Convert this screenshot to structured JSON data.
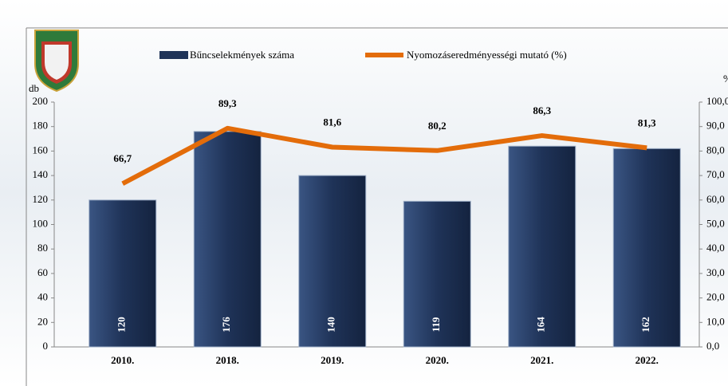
{
  "chart_data": {
    "type": "bar-line",
    "categories": [
      "2010.",
      "2018.",
      "2019.",
      "2020.",
      "2021.",
      "2022."
    ],
    "series": [
      {
        "name": "Bűncselekmények száma",
        "color": "#1f3358",
        "values": [
          120,
          176,
          140,
          119,
          164,
          162
        ]
      },
      {
        "name": "Nyomozáseredményességi mutató (%)",
        "color": "#e36c0a",
        "axis": "y2",
        "values": [
          66.7,
          89.3,
          81.6,
          80.2,
          86.3,
          81.3
        ],
        "value_labels": [
          "66,7",
          "89,3",
          "81,6",
          "80,2",
          "86,3",
          "81,3"
        ]
      }
    ],
    "ylabel": "db",
    "y2label": "%",
    "ylim": [
      0,
      200
    ],
    "yticks": [
      0,
      20,
      40,
      60,
      80,
      100,
      120,
      140,
      160,
      180,
      200
    ],
    "y2lim": [
      0,
      100
    ],
    "y2ticks": [
      {
        "value": 0,
        "label": "0,0"
      },
      {
        "value": 10,
        "label": "10,0"
      },
      {
        "value": 20,
        "label": "20,0"
      },
      {
        "value": 30,
        "label": "30,0"
      },
      {
        "value": 40,
        "label": "40,0"
      },
      {
        "value": 50,
        "label": "50,0"
      },
      {
        "value": 60,
        "label": "60,0"
      },
      {
        "value": 70,
        "label": "70,0"
      },
      {
        "value": 80,
        "label": "80,0"
      },
      {
        "value": 90,
        "label": "90,0"
      },
      {
        "value": 100,
        "label": "100,0"
      }
    ],
    "legend": "top"
  }
}
